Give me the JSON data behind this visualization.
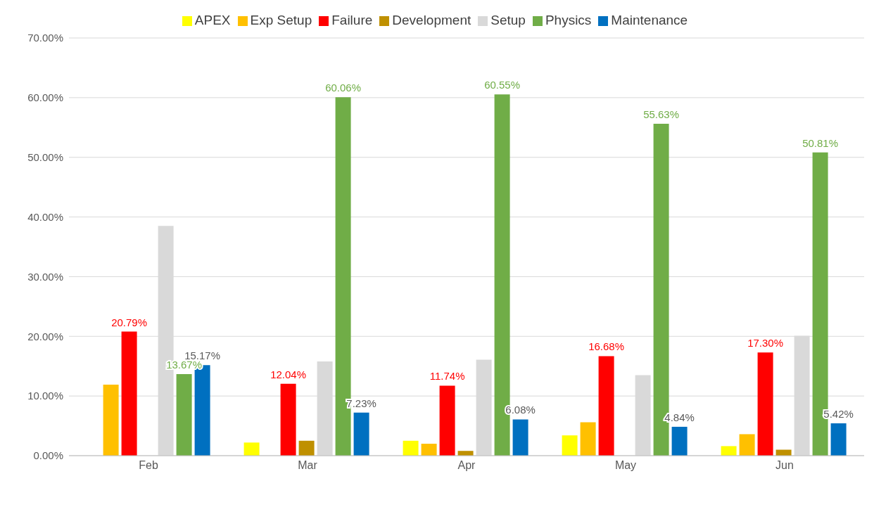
{
  "chart_data": {
    "type": "bar",
    "categories": [
      "Feb",
      "Mar",
      "Apr",
      "May",
      "Jun"
    ],
    "series": [
      {
        "name": "APEX",
        "color": "#ffff00",
        "values": [
          0,
          2.2,
          2.5,
          3.4,
          1.6
        ]
      },
      {
        "name": "Exp Setup",
        "color": "#ffc000",
        "values": [
          11.9,
          0,
          2.0,
          5.6,
          3.6
        ]
      },
      {
        "name": "Failure",
        "color": "#ff0000",
        "values": [
          20.79,
          12.04,
          11.74,
          16.68,
          17.3
        ],
        "value_labels": [
          "20.79%",
          "12.04%",
          "11.74%",
          "16.68%",
          "17.30%"
        ]
      },
      {
        "name": "Development",
        "color": "#bf9000",
        "values": [
          0,
          2.5,
          0.8,
          0,
          1.0
        ]
      },
      {
        "name": "Setup",
        "color": "#d9d9d9",
        "values": [
          38.5,
          15.8,
          16.1,
          13.5,
          20.1
        ]
      },
      {
        "name": "Physics",
        "color": "#70ad47",
        "values": [
          13.67,
          60.06,
          60.55,
          55.63,
          50.81
        ],
        "value_labels": [
          "13.67%",
          "60.06%",
          "60.55%",
          "55.63%",
          "50.81%"
        ]
      },
      {
        "name": "Maintenance",
        "color": "#0070c0",
        "values": [
          15.17,
          7.23,
          6.08,
          4.84,
          5.42
        ],
        "value_labels": [
          "15.17%",
          "7.23%",
          "6.08%",
          "4.84%",
          "5.42%"
        ]
      }
    ],
    "ylim": [
      0,
      70
    ],
    "yticks": [
      {
        "value": 0,
        "label": "0.00%"
      },
      {
        "value": 10,
        "label": "10.00%"
      },
      {
        "value": 20,
        "label": "20.00%"
      },
      {
        "value": 30,
        "label": "30.00%"
      },
      {
        "value": 40,
        "label": "40.00%"
      },
      {
        "value": 50,
        "label": "50.00%"
      },
      {
        "value": 60,
        "label": "60.00%"
      },
      {
        "value": 70,
        "label": "70.00%"
      }
    ],
    "grid": "y",
    "legend": "top"
  }
}
